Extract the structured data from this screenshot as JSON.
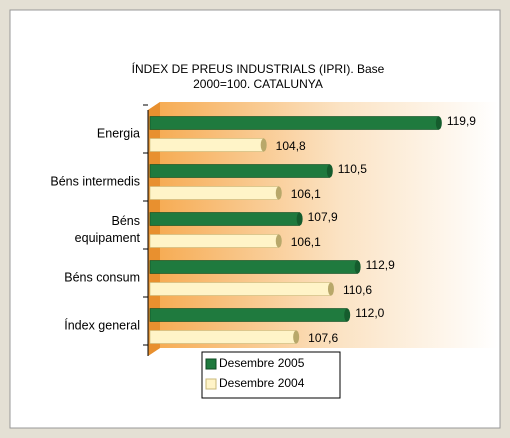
{
  "chart_data": {
    "type": "bar",
    "orientation": "horizontal",
    "title": "ÍNDEX DE PREUS INDUSTRIALS (IPRI). Base\n2000=100. CATALUNYA",
    "categories": [
      "Energia",
      "Béns intermedis",
      "Béns\nequipament",
      "Béns consum",
      "Índex general"
    ],
    "series": [
      {
        "name": "Desembre 2005",
        "color": "#1f7a3e",
        "values": [
          119.9,
          110.5,
          107.9,
          112.9,
          112.0
        ],
        "value_labels": [
          "119,9",
          "110,5",
          "107,9",
          "112,9",
          "112,0"
        ]
      },
      {
        "name": "Desembre 2004",
        "color": "#fff4c8",
        "values": [
          104.8,
          106.1,
          106.1,
          110.6,
          107.6
        ],
        "value_labels": [
          "104,8",
          "106,1",
          "106,1",
          "110,6",
          "107,6"
        ]
      }
    ],
    "xlim": [
      95,
      125
    ]
  }
}
